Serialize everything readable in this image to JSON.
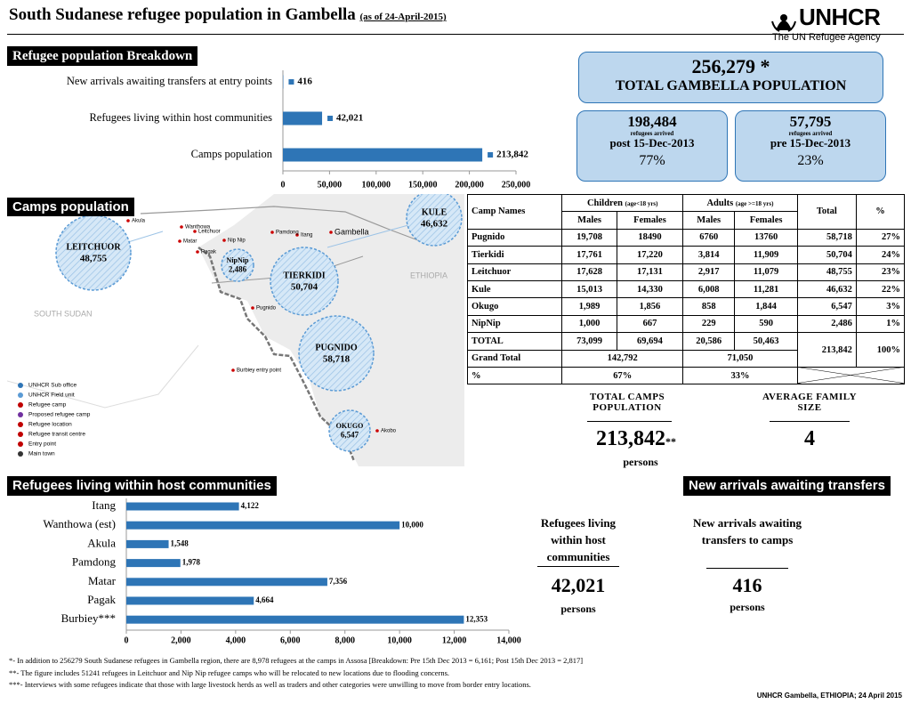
{
  "header": {
    "title": "South Sudanese refugee population in Gambella",
    "date": "(as of 24-April-2015)",
    "logo": "UNHCR",
    "logo_sub": "The UN Refugee Agency"
  },
  "chart_data": [
    {
      "type": "bar",
      "orientation": "horizontal",
      "title": "Refugee population Breakdown",
      "categories": [
        "New arrivals awaiting transfers at entry points",
        "Refugees living within host communities",
        "Camps population"
      ],
      "values": [
        416,
        42021,
        213842
      ],
      "value_labels": [
        "416",
        "42,021",
        "213,842"
      ],
      "color": "#2e75b6",
      "xlim": [
        0,
        250000
      ],
      "xticks": [
        0,
        {
          "value": 50000,
          "label": "50,000"
        },
        {
          "value": 100000,
          "label": "100,000"
        },
        {
          "value": 150000,
          "label": "150,000"
        },
        {
          "value": 200000,
          "label": "200,000"
        },
        {
          "value": 250000,
          "label": "250,000"
        }
      ]
    },
    {
      "type": "bar",
      "orientation": "horizontal",
      "title": "Refugees living within host communities",
      "categories": [
        "Itang",
        "Wanthowa (est)",
        "Akula",
        "Pamdong",
        "Matar",
        "Pagak",
        "Burbiey***"
      ],
      "values": [
        4122,
        10000,
        1548,
        1978,
        7356,
        4664,
        12353
      ],
      "value_labels": [
        "4,122",
        "10,000",
        "1,548",
        "1,978",
        "7,356",
        "4,664",
        "12,353"
      ],
      "color": "#2e75b6",
      "xlim": [
        0,
        14000
      ],
      "xticks": [
        0,
        {
          "value": 2000,
          "label": "2,000"
        },
        {
          "value": 4000,
          "label": "4,000"
        },
        {
          "value": 6000,
          "label": "6,000"
        },
        {
          "value": 8000,
          "label": "8,000"
        },
        {
          "value": 10000,
          "label": "10,000"
        },
        {
          "value": 12000,
          "label": "12,000"
        },
        {
          "value": 14000,
          "label": "14,000"
        }
      ]
    }
  ],
  "totals": {
    "total": {
      "value": "256,279 *",
      "label": "TOTAL GAMBELLA POPULATION"
    },
    "post": {
      "value": "198,484",
      "sub": "refugees arrived",
      "period": "post 15-Dec-2013",
      "pct": "77%"
    },
    "pre": {
      "value": "57,795",
      "sub": "refugees arrived",
      "period": "pre 15-Dec-2013",
      "pct": "23%"
    }
  },
  "map": {
    "title": "Camps population",
    "bubbles": [
      {
        "name": "LEITCHUOR",
        "value": "48,755"
      },
      {
        "name": "KULE",
        "value": "46,632"
      },
      {
        "name": "TIERKIDI",
        "value": "50,704"
      },
      {
        "name": "NipNip",
        "value": "2,486"
      },
      {
        "name": "PUGNIDO",
        "value": "58,718"
      },
      {
        "name": "OKUGO",
        "value": "6,547"
      }
    ],
    "regions": [
      "SOUTH SUDAN",
      "ETHIOPIA"
    ],
    "places": [
      "Gambella",
      "Itang",
      "Pagak",
      "Matar",
      "Pamdong",
      "Akula",
      "Pugnido",
      "Akobo",
      "Wanthowa",
      "Leitchuor",
      "Nip Nip",
      "Burbiey entry point"
    ],
    "legend": [
      "UNHCR Sub office",
      "UNHCR Field unit",
      "Refugee camp",
      "Proposed refugee camp",
      "Refugee location",
      "Refugee transit centre",
      "Entry point",
      "Main town"
    ]
  },
  "table": {
    "columns": {
      "camp": "Camp Names",
      "children": "Children",
      "children_note": "(age<18 yrs)",
      "adults": "Adults",
      "adults_note": "(age >=18 yrs)",
      "total": "Total",
      "pct": "%"
    },
    "subcolumns": [
      "Males",
      "Females",
      "Males",
      "Females"
    ],
    "rows": [
      [
        "Pugnido",
        "19,708",
        "18490",
        "6760",
        "13760",
        "58,718",
        "27%"
      ],
      [
        "Tierkidi",
        "17,761",
        "17,220",
        "3,814",
        "11,909",
        "50,704",
        "24%"
      ],
      [
        "Leitchuor",
        "17,628",
        "17,131",
        "2,917",
        "11,079",
        "48,755",
        "23%"
      ],
      [
        "Kule",
        "15,013",
        "14,330",
        "6,008",
        "11,281",
        "46,632",
        "22%"
      ],
      [
        "Okugo",
        "1,989",
        "1,856",
        "858",
        "1,844",
        "6,547",
        "3%"
      ],
      [
        "NipNip",
        "1,000",
        "667",
        "229",
        "590",
        "2,486",
        "1%"
      ]
    ],
    "total_row": {
      "label": "TOTAL",
      "values": [
        "73,099",
        "69,694",
        "20,586",
        "50,463"
      ],
      "total": "213,842",
      "pct": "100%"
    },
    "grand_total_row": {
      "label": "Grand Total",
      "children": "142,792",
      "adults": "71,050"
    },
    "pct_row": {
      "label": "%",
      "children": "67%",
      "adults": "33%"
    }
  },
  "stats": {
    "camps": {
      "label": "TOTAL CAMPS POPULATION",
      "value": "213,842",
      "mark": "**",
      "unit": "persons"
    },
    "family": {
      "label": "AVERAGE FAMILY SIZE",
      "value": "4"
    },
    "host": {
      "label": "Refugees living within host communities",
      "value": "42,021",
      "unit": "persons"
    },
    "arrivals": {
      "banner": "New arrivals awaiting transfers",
      "label": "New arrivals awaiting transfers to camps",
      "value": "416",
      "unit": "persons"
    }
  },
  "footnotes": [
    "*- In addition to 256279 South Sudanese refugees in Gambella region, there are 8,978 refugees at the camps in Assosa [Breakdown: Pre 15th Dec 2013 = 6,161; Post 15th Dec 2013 = 2,817]",
    "**- The figure includes 51241 refugees in Leitchuor and Nip Nip refugee camps who will be relocated to new locations due to flooding concerns.",
    "***- Interviews with some refugees indicate that those with large livestock herds as well as traders and other categories were unwilling to move from border entry locations."
  ],
  "credit": "UNHCR Gambella, ETHIOPIA; 24 April 2015"
}
